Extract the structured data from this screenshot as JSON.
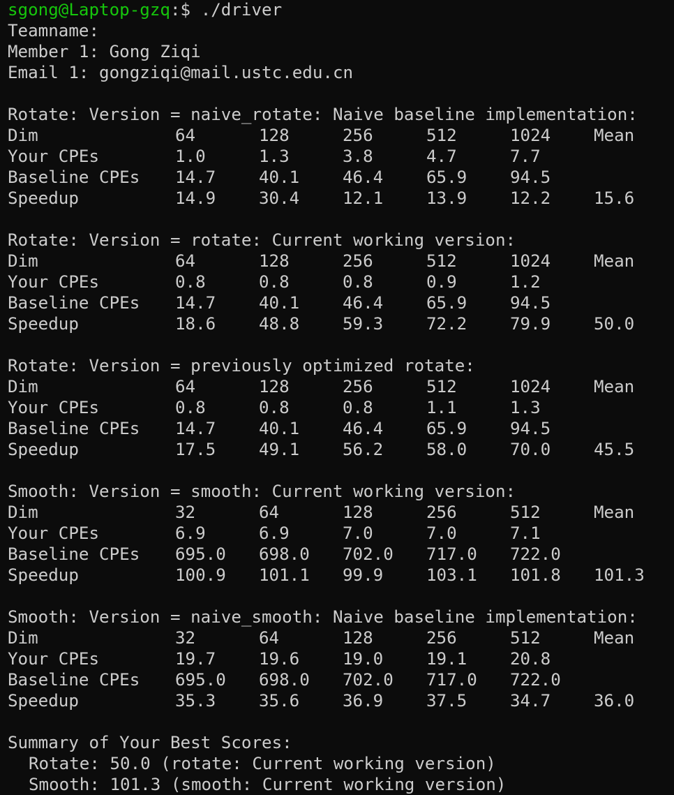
{
  "prompt": {
    "user_host": "sgong@Laptop-gzq",
    "separator": ":$ ",
    "command": "./driver"
  },
  "team_info": {
    "teamname_label": "Teamname:",
    "member1": "Member 1: Gong Ziqi",
    "email1": "Email 1: gongziqi@mail.ustc.edu.cn"
  },
  "row_labels": {
    "dim": "Dim",
    "your_cpes": "Your CPEs",
    "baseline_cpes": "Baseline CPEs",
    "speedup": "Speedup"
  },
  "sections": [
    {
      "title": "Rotate: Version = naive_rotate: Naive baseline implementation:",
      "dims": [
        "64",
        "128",
        "256",
        "512",
        "1024",
        "Mean"
      ],
      "your_cpes": [
        "1.0",
        "1.3",
        "3.8",
        "4.7",
        "7.7"
      ],
      "baseline_cpes": [
        "14.7",
        "40.1",
        "46.4",
        "65.9",
        "94.5"
      ],
      "speedup": [
        "14.9",
        "30.4",
        "12.1",
        "13.9",
        "12.2",
        "15.6"
      ]
    },
    {
      "title": "Rotate: Version = rotate: Current working version:",
      "dims": [
        "64",
        "128",
        "256",
        "512",
        "1024",
        "Mean"
      ],
      "your_cpes": [
        "0.8",
        "0.8",
        "0.8",
        "0.9",
        "1.2"
      ],
      "baseline_cpes": [
        "14.7",
        "40.1",
        "46.4",
        "65.9",
        "94.5"
      ],
      "speedup": [
        "18.6",
        "48.8",
        "59.3",
        "72.2",
        "79.9",
        "50.0"
      ]
    },
    {
      "title": "Rotate: Version = previously optimized rotate:",
      "dims": [
        "64",
        "128",
        "256",
        "512",
        "1024",
        "Mean"
      ],
      "your_cpes": [
        "0.8",
        "0.8",
        "0.8",
        "1.1",
        "1.3"
      ],
      "baseline_cpes": [
        "14.7",
        "40.1",
        "46.4",
        "65.9",
        "94.5"
      ],
      "speedup": [
        "17.5",
        "49.1",
        "56.2",
        "58.0",
        "70.0",
        "45.5"
      ]
    },
    {
      "title": "Smooth: Version = smooth: Current working version:",
      "dims": [
        "32",
        "64",
        "128",
        "256",
        "512",
        "Mean"
      ],
      "your_cpes": [
        "6.9",
        "6.9",
        "7.0",
        "7.0",
        "7.1"
      ],
      "baseline_cpes": [
        "695.0",
        "698.0",
        "702.0",
        "717.0",
        "722.0"
      ],
      "speedup": [
        "100.9",
        "101.1",
        "99.9",
        "103.1",
        "101.8",
        "101.3"
      ]
    },
    {
      "title": "Smooth: Version = naive_smooth: Naive baseline implementation:",
      "dims": [
        "32",
        "64",
        "128",
        "256",
        "512",
        "Mean"
      ],
      "your_cpes": [
        "19.7",
        "19.6",
        "19.0",
        "19.1",
        "20.8"
      ],
      "baseline_cpes": [
        "695.0",
        "698.0",
        "702.0",
        "717.0",
        "722.0"
      ],
      "speedup": [
        "35.3",
        "35.6",
        "36.9",
        "37.5",
        "34.7",
        "36.0"
      ]
    }
  ],
  "summary": {
    "title": "Summary of Your Best Scores:",
    "rotate": "Rotate: 50.0 (rotate: Current working version)",
    "smooth": "Smooth: 101.3 (smooth: Current working version)"
  },
  "colors": {
    "background": "#0c0c0c",
    "text": "#cccccc",
    "prompt_user": "#16c60c"
  }
}
